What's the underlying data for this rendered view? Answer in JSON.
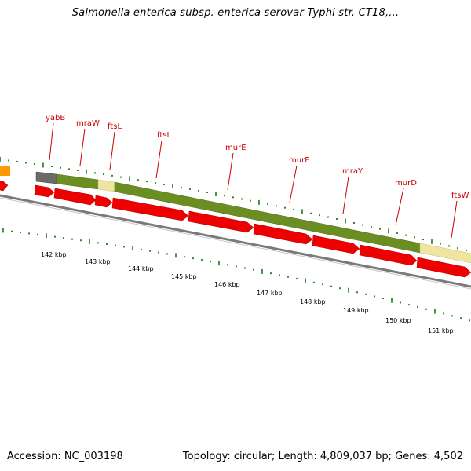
{
  "header": {
    "title": "Salmonella enterica subsp. enterica serovar Typhi str. CT18,..."
  },
  "footer": {
    "accession": "Accession: NC_003198",
    "topology": "Topology: circular; Length: 4,809,037 bp; Genes: 4,502"
  },
  "colors": {
    "gene_label": "#cc0000",
    "tick": "#1a7a1a",
    "cds_arrow": "#ee0000",
    "cog_green": "#6b8e23",
    "cog_yellow": "#efe4a0",
    "cog_grey": "#6a6a6a",
    "cog_orange": "#ff9900",
    "backbone": "#888888"
  },
  "gene_labels": [
    "yabB",
    "mraW",
    "ftsL",
    "ftsI",
    "murE",
    "murF",
    "mraY",
    "murD",
    "ftsW"
  ],
  "kbp_labels": [
    "142 kbp",
    "143 kbp",
    "144 kbp",
    "145 kbp",
    "146 kbp",
    "147 kbp",
    "148 kbp",
    "149 kbp",
    "150 kbp",
    "151 kbp"
  ]
}
